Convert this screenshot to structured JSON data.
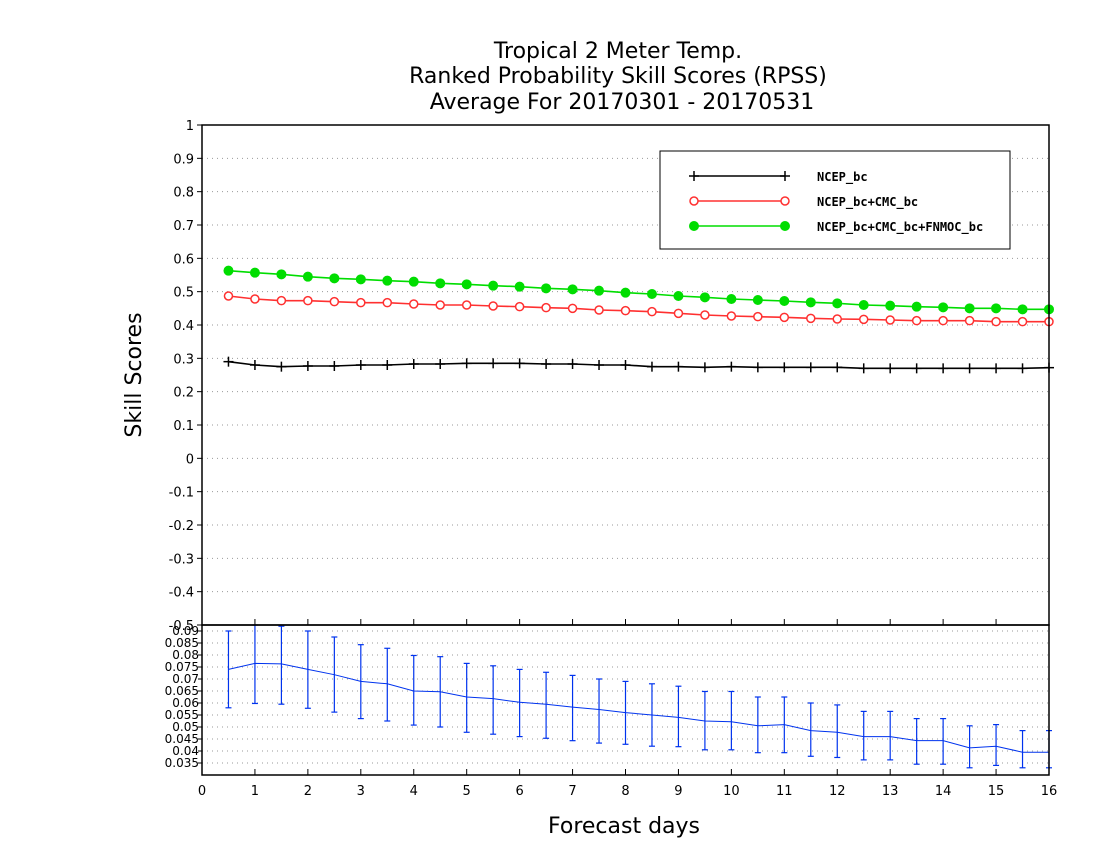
{
  "chart_data": {
    "type": "line",
    "title": [
      "Tropical 2 Meter Temp.",
      "Ranked Probability Skill Scores (RPSS)",
      "Average For 20170301 - 20170531"
    ],
    "xlabel": "Forecast days",
    "ylabel": "Skill Scores",
    "xlim": [
      0,
      16
    ],
    "ylim": [
      -0.5,
      1
    ],
    "x_ticks": [
      "0",
      "1",
      "2",
      "3",
      "4",
      "5",
      "6",
      "7",
      "8",
      "9",
      "10",
      "11",
      "12",
      "13",
      "14",
      "15",
      "16"
    ],
    "y_ticks": [
      "1",
      "0.9",
      "0.8",
      "0.7",
      "0.6",
      "0.5",
      "0.4",
      "0.3",
      "0.2",
      "0.1",
      "0",
      "-0.1",
      "-0.2",
      "-0.3",
      "-0.4",
      "-0.5"
    ],
    "legend_position": "top-right",
    "grid": true,
    "x": [
      0.5,
      1,
      1.5,
      2,
      2.5,
      3,
      3.5,
      4,
      4.5,
      5,
      5.5,
      6,
      6.5,
      7,
      7.5,
      8,
      8.5,
      9,
      9.5,
      10,
      10.5,
      11,
      11.5,
      12,
      12.5,
      13,
      13.5,
      14,
      14.5,
      15,
      15.5,
      16
    ],
    "series": [
      {
        "name": "NCEP_bc",
        "color": "#000000",
        "marker": "plus",
        "values": [
          0.29,
          0.28,
          0.275,
          0.277,
          0.277,
          0.28,
          0.28,
          0.283,
          0.283,
          0.285,
          0.285,
          0.285,
          0.283,
          0.283,
          0.28,
          0.28,
          0.275,
          0.275,
          0.273,
          0.275,
          0.273,
          0.273,
          0.273,
          0.273,
          0.27,
          0.27,
          0.27,
          0.27,
          0.27,
          0.27,
          0.27,
          0.272
        ]
      },
      {
        "name": "NCEP_bc+CMC_bc",
        "color": "#ff3030",
        "marker": "open-circle",
        "values": [
          0.487,
          0.478,
          0.473,
          0.473,
          0.47,
          0.467,
          0.467,
          0.463,
          0.46,
          0.46,
          0.457,
          0.455,
          0.452,
          0.45,
          0.445,
          0.443,
          0.44,
          0.435,
          0.43,
          0.427,
          0.425,
          0.423,
          0.42,
          0.418,
          0.417,
          0.415,
          0.413,
          0.413,
          0.413,
          0.41,
          0.41,
          0.41
        ]
      },
      {
        "name": "NCEP_bc+CMC_bc+FNMOC_bc",
        "color": "#00dd00",
        "marker": "filled-circle",
        "values": [
          0.563,
          0.557,
          0.552,
          0.545,
          0.54,
          0.537,
          0.533,
          0.53,
          0.525,
          0.522,
          0.518,
          0.515,
          0.51,
          0.507,
          0.503,
          0.497,
          0.493,
          0.487,
          0.483,
          0.478,
          0.475,
          0.472,
          0.468,
          0.465,
          0.46,
          0.458,
          0.455,
          0.453,
          0.45,
          0.45,
          0.447,
          0.447
        ]
      }
    ],
    "lower_panel": {
      "type": "errorbar",
      "color": "#0033ee",
      "ylim": [
        0.03,
        0.0925
      ],
      "y_ticks": [
        "0.09",
        "0.085",
        "0.08",
        "0.075",
        "0.07",
        "0.065",
        "0.06",
        "0.055",
        "0.05",
        "0.045",
        "0.04",
        "0.035"
      ],
      "x": [
        0.5,
        1,
        1.5,
        2,
        2.5,
        3,
        3.5,
        4,
        4.5,
        5,
        5.5,
        6,
        6.5,
        7,
        7.5,
        8,
        8.5,
        9,
        9.5,
        10,
        10.5,
        11,
        11.5,
        12,
        12.5,
        13,
        13.5,
        14,
        14.5,
        15,
        15.5,
        16
      ],
      "values": [
        0.074,
        0.0765,
        0.0763,
        0.074,
        0.0718,
        0.069,
        0.068,
        0.065,
        0.0647,
        0.0625,
        0.0618,
        0.0603,
        0.0595,
        0.0583,
        0.0573,
        0.056,
        0.055,
        0.054,
        0.0525,
        0.0522,
        0.0505,
        0.051,
        0.0485,
        0.0478,
        0.046,
        0.046,
        0.0443,
        0.0443,
        0.0413,
        0.042,
        0.0395,
        0.0395
      ],
      "lower": [
        0.058,
        0.0598,
        0.0595,
        0.0578,
        0.0562,
        0.0535,
        0.0525,
        0.0508,
        0.05,
        0.0478,
        0.047,
        0.046,
        0.0453,
        0.0443,
        0.0433,
        0.0428,
        0.042,
        0.0418,
        0.0405,
        0.0405,
        0.0393,
        0.0393,
        0.0378,
        0.0373,
        0.0363,
        0.0363,
        0.0345,
        0.0345,
        0.033,
        0.034,
        0.033,
        0.033
      ],
      "upper": [
        0.09,
        0.0925,
        0.092,
        0.09,
        0.0875,
        0.0843,
        0.0828,
        0.0798,
        0.0793,
        0.0765,
        0.0755,
        0.074,
        0.0728,
        0.0715,
        0.07,
        0.069,
        0.068,
        0.067,
        0.0648,
        0.0648,
        0.0625,
        0.0625,
        0.06,
        0.0592,
        0.0565,
        0.0565,
        0.0535,
        0.0535,
        0.0505,
        0.051,
        0.0485,
        0.0485
      ]
    }
  }
}
